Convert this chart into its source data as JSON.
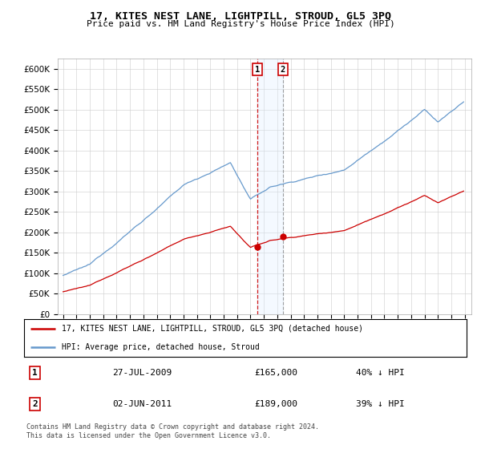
{
  "title": "17, KITES NEST LANE, LIGHTPILL, STROUD, GL5 3PQ",
  "subtitle": "Price paid vs. HM Land Registry's House Price Index (HPI)",
  "legend_line1": "17, KITES NEST LANE, LIGHTPILL, STROUD, GL5 3PQ (detached house)",
  "legend_line2": "HPI: Average price, detached house, Stroud",
  "transaction1_date": "27-JUL-2009",
  "transaction1_price": 165000,
  "transaction1_hpi": "40% ↓ HPI",
  "transaction2_date": "02-JUN-2011",
  "transaction2_price": 189000,
  "transaction2_hpi": "39% ↓ HPI",
  "footer1": "Contains HM Land Registry data © Crown copyright and database right 2024.",
  "footer2": "This data is licensed under the Open Government Licence v3.0.",
  "hpi_color": "#6699CC",
  "property_color": "#CC0000",
  "background_color": "#FFFFFF",
  "grid_color": "#CCCCCC",
  "shade_color": "#DDEEFF",
  "ylim": [
    0,
    625000
  ],
  "yticks": [
    0,
    50000,
    100000,
    150000,
    200000,
    250000,
    300000,
    350000,
    400000,
    450000,
    500000,
    550000,
    600000
  ],
  "start_year": 1995,
  "end_year": 2025
}
